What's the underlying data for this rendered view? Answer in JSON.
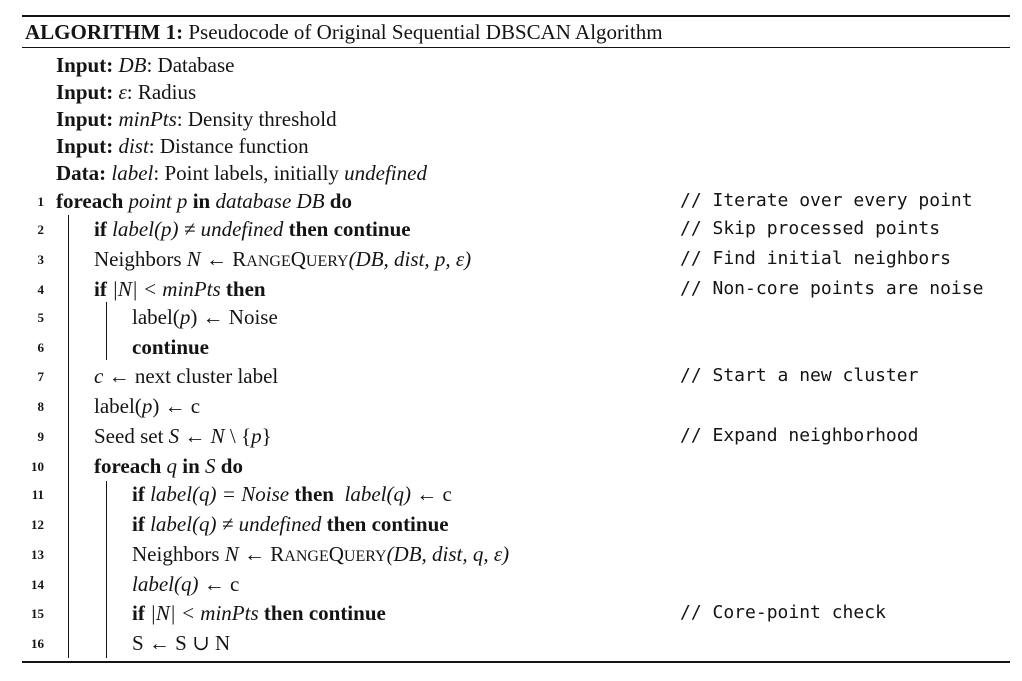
{
  "caption": {
    "label": "ALGORITHM 1:",
    "text": " Pseudocode of Original Sequential DBSCAN Algorithm"
  },
  "io": [
    {
      "kw": "Input:",
      "name": "DB",
      "desc": ": Database"
    },
    {
      "kw": "Input:",
      "name": "ε",
      "desc": ": Radius"
    },
    {
      "kw": "Input:",
      "name": "minPts",
      "desc": ": Density threshold"
    },
    {
      "kw": "Input:",
      "name": "dist",
      "desc": ": Distance function"
    },
    {
      "kw": "Data:",
      "name": "label",
      "desc": ": Point labels, initially ",
      "extra": "undefined"
    }
  ],
  "lines": [
    {
      "num": "1",
      "comment": "// Iterate over every point"
    },
    {
      "num": "2",
      "comment": "// Skip processed points"
    },
    {
      "num": "3",
      "comment": "// Find initial neighbors"
    },
    {
      "num": "4",
      "comment": "// Non-core points are noise"
    },
    {
      "num": "5",
      "comment": ""
    },
    {
      "num": "6",
      "comment": ""
    },
    {
      "num": "7",
      "comment": "// Start a new cluster"
    },
    {
      "num": "8",
      "comment": ""
    },
    {
      "num": "9",
      "comment": "// Expand neighborhood"
    },
    {
      "num": "10",
      "comment": ""
    },
    {
      "num": "11",
      "comment": ""
    },
    {
      "num": "12",
      "comment": ""
    },
    {
      "num": "13",
      "comment": ""
    },
    {
      "num": "14",
      "comment": ""
    },
    {
      "num": "15",
      "comment": "// Core-point check"
    },
    {
      "num": "16",
      "comment": ""
    }
  ],
  "kw": {
    "foreach": "foreach",
    "in": "in",
    "do": "do",
    "if": "if",
    "then": "then",
    "continue": "continue",
    "then_continue": "then continue"
  },
  "t": {
    "l1_point": "point p",
    "l1_db": "database DB",
    "l2_cond": "label(p) ≠ undefined",
    "l3_a": "Neighbors ",
    "l3_N": "N",
    "l3_arrow": " ← ",
    "rq_R": "R",
    "rq_ange": "ANGE",
    "rq_Q": "Q",
    "rq_uery": "UERY",
    "l3_args": "(DB, dist, p, ε)",
    "l4_cond": "|N| < minPts",
    "l5": "label(",
    "l5_p": "p",
    "l5_rest": ") ← Noise",
    "l7_c": "c",
    "l7_rest": " ← next cluster label",
    "l8_a": "label(",
    "l8_p": "p",
    "l8_rest": ") ← c",
    "l9_a": "Seed set ",
    "l9_S": "S",
    "l9_rest1": " ← ",
    "l9_N": "N",
    "l9_rest2": " \\ {",
    "l9_p": "p",
    "l9_rest3": "}",
    "l10_q": "q",
    "l10_S": "S",
    "l11_cond": "label(q) = Noise",
    "l11_assign": "label(q)",
    "l11_rest": " ← c",
    "l12_cond": "label(q) ≠ undefined",
    "l13_args": "(DB, dist, q, ε)",
    "l14_a": "label(q)",
    "l14_rest": " ← c",
    "l15_cond": "|N| < minPts",
    "l16": "S ← S ∪ N"
  }
}
